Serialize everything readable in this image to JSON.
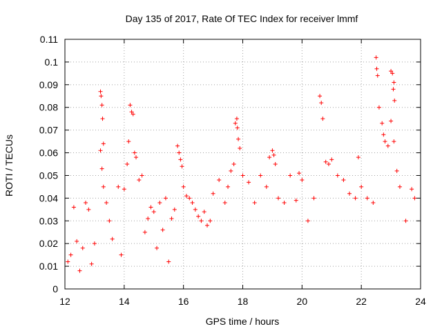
{
  "chart_data": {
    "type": "scatter",
    "title": "Day 135 of 2017, Rate Of TEC Index for receiver lmmf",
    "xlabel": "GPS time / hours",
    "ylabel": "ROTI / TECUs",
    "xlim": [
      12,
      24
    ],
    "ylim": [
      0,
      0.11
    ],
    "x_ticks": [
      12,
      14,
      16,
      18,
      20,
      22,
      24
    ],
    "x_tick_labels": [
      "12",
      "14",
      "16",
      "18",
      "20",
      "22",
      "24"
    ],
    "y_ticks": [
      0,
      0.01,
      0.02,
      0.03,
      0.04,
      0.05,
      0.06,
      0.07,
      0.08,
      0.09,
      0.1,
      0.11
    ],
    "y_tick_labels": [
      "0",
      "0.01",
      "0.02",
      "0.03",
      "0.04",
      "0.05",
      "0.06",
      "0.07",
      "0.08",
      "0.09",
      "0.1",
      "0.11"
    ],
    "grid": true,
    "marker": "+",
    "color": "#ff0000",
    "series": [
      {
        "name": "ROTI",
        "points": [
          [
            12.1,
            0.012
          ],
          [
            12.2,
            0.015
          ],
          [
            12.3,
            0.036
          ],
          [
            12.4,
            0.021
          ],
          [
            12.5,
            0.008
          ],
          [
            12.6,
            0.018
          ],
          [
            12.7,
            0.038
          ],
          [
            12.8,
            0.035
          ],
          [
            12.9,
            0.011
          ],
          [
            13.0,
            0.02
          ],
          [
            13.2,
            0.087
          ],
          [
            13.22,
            0.085
          ],
          [
            13.25,
            0.081
          ],
          [
            13.27,
            0.075
          ],
          [
            13.3,
            0.064
          ],
          [
            13.2,
            0.061
          ],
          [
            13.25,
            0.053
          ],
          [
            13.3,
            0.045
          ],
          [
            13.4,
            0.038
          ],
          [
            13.5,
            0.03
          ],
          [
            13.6,
            0.022
          ],
          [
            13.8,
            0.045
          ],
          [
            13.9,
            0.015
          ],
          [
            14.0,
            0.044
          ],
          [
            14.1,
            0.055
          ],
          [
            14.15,
            0.065
          ],
          [
            14.2,
            0.081
          ],
          [
            14.25,
            0.078
          ],
          [
            14.3,
            0.077
          ],
          [
            14.35,
            0.06
          ],
          [
            14.4,
            0.058
          ],
          [
            14.5,
            0.048
          ],
          [
            14.6,
            0.05
          ],
          [
            14.7,
            0.025
          ],
          [
            14.8,
            0.031
          ],
          [
            14.9,
            0.036
          ],
          [
            15.0,
            0.034
          ],
          [
            15.1,
            0.018
          ],
          [
            15.2,
            0.038
          ],
          [
            15.3,
            0.026
          ],
          [
            15.4,
            0.04
          ],
          [
            15.5,
            0.012
          ],
          [
            15.6,
            0.031
          ],
          [
            15.7,
            0.035
          ],
          [
            15.8,
            0.063
          ],
          [
            15.85,
            0.06
          ],
          [
            15.9,
            0.057
          ],
          [
            15.95,
            0.054
          ],
          [
            16.0,
            0.045
          ],
          [
            16.1,
            0.041
          ],
          [
            16.2,
            0.04
          ],
          [
            16.3,
            0.038
          ],
          [
            16.4,
            0.035
          ],
          [
            16.5,
            0.032
          ],
          [
            16.6,
            0.03
          ],
          [
            16.7,
            0.034
          ],
          [
            16.8,
            0.028
          ],
          [
            16.9,
            0.03
          ],
          [
            17.0,
            0.042
          ],
          [
            17.2,
            0.048
          ],
          [
            17.4,
            0.038
          ],
          [
            17.5,
            0.045
          ],
          [
            17.6,
            0.052
          ],
          [
            17.7,
            0.055
          ],
          [
            17.75,
            0.073
          ],
          [
            17.8,
            0.075
          ],
          [
            17.82,
            0.071
          ],
          [
            17.85,
            0.066
          ],
          [
            17.9,
            0.062
          ],
          [
            18.0,
            0.05
          ],
          [
            18.2,
            0.047
          ],
          [
            18.4,
            0.038
          ],
          [
            18.6,
            0.05
          ],
          [
            18.8,
            0.045
          ],
          [
            18.9,
            0.058
          ],
          [
            19.0,
            0.061
          ],
          [
            19.05,
            0.059
          ],
          [
            19.1,
            0.055
          ],
          [
            19.2,
            0.04
          ],
          [
            19.4,
            0.038
          ],
          [
            19.6,
            0.05
          ],
          [
            19.8,
            0.039
          ],
          [
            19.9,
            0.051
          ],
          [
            20.0,
            0.048
          ],
          [
            20.2,
            0.03
          ],
          [
            20.4,
            0.04
          ],
          [
            20.6,
            0.085
          ],
          [
            20.65,
            0.082
          ],
          [
            20.7,
            0.075
          ],
          [
            20.8,
            0.056
          ],
          [
            20.9,
            0.055
          ],
          [
            21.0,
            0.057
          ],
          [
            21.2,
            0.05
          ],
          [
            21.4,
            0.048
          ],
          [
            21.6,
            0.042
          ],
          [
            21.8,
            0.04
          ],
          [
            21.9,
            0.058
          ],
          [
            22.0,
            0.045
          ],
          [
            22.2,
            0.04
          ],
          [
            22.4,
            0.038
          ],
          [
            22.5,
            0.102
          ],
          [
            22.52,
            0.097
          ],
          [
            22.55,
            0.094
          ],
          [
            22.6,
            0.08
          ],
          [
            22.7,
            0.073
          ],
          [
            22.75,
            0.068
          ],
          [
            22.8,
            0.065
          ],
          [
            22.9,
            0.063
          ],
          [
            23.0,
            0.096
          ],
          [
            23.05,
            0.095
          ],
          [
            23.1,
            0.091
          ],
          [
            23.08,
            0.088
          ],
          [
            23.12,
            0.083
          ],
          [
            23.0,
            0.074
          ],
          [
            23.1,
            0.065
          ],
          [
            23.2,
            0.052
          ],
          [
            23.3,
            0.045
          ],
          [
            23.5,
            0.03
          ],
          [
            23.7,
            0.044
          ],
          [
            23.8,
            0.04
          ]
        ]
      }
    ]
  }
}
